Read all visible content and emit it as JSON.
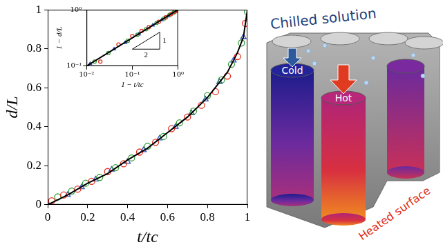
{
  "chart_data": [
    {
      "type": "scatter",
      "x_label": "t/tc",
      "y_label": "d/L",
      "xlim": [
        0,
        1
      ],
      "ylim": [
        0,
        1
      ],
      "xticks": [
        0,
        0.2,
        0.4,
        0.6,
        0.8,
        1
      ],
      "yticks": [
        0,
        0.2,
        0.4,
        0.6,
        0.8,
        1
      ],
      "grid": false,
      "series": [
        {
          "color": "#000000",
          "line_style": "solid",
          "marker": "none",
          "x": [
            0,
            0.1,
            0.2,
            0.3,
            0.4,
            0.5,
            0.6,
            0.7,
            0.8,
            0.9,
            0.95,
            0.98,
            1
          ],
          "values": [
            0,
            0.05,
            0.11,
            0.16,
            0.23,
            0.29,
            0.37,
            0.45,
            0.55,
            0.68,
            0.78,
            0.86,
            1
          ]
        },
        {
          "color": "#e03020",
          "marker": "circle",
          "x": [
            0.02,
            0.08,
            0.15,
            0.22,
            0.3,
            0.38,
            0.46,
            0.54,
            0.62,
            0.7,
            0.77,
            0.84,
            0.9,
            0.95,
            0.99
          ],
          "values": [
            0.02,
            0.05,
            0.08,
            0.12,
            0.17,
            0.21,
            0.27,
            0.32,
            0.39,
            0.45,
            0.51,
            0.58,
            0.66,
            0.76,
            0.93
          ]
        },
        {
          "color": "#3aa040",
          "marker": "circle",
          "x": [
            0.05,
            0.12,
            0.19,
            0.26,
            0.34,
            0.42,
            0.5,
            0.58,
            0.66,
            0.73,
            0.8,
            0.87,
            0.92,
            0.97,
            1
          ],
          "values": [
            0.04,
            0.07,
            0.11,
            0.14,
            0.19,
            0.24,
            0.3,
            0.35,
            0.42,
            0.48,
            0.56,
            0.64,
            0.72,
            0.83,
            0.99
          ]
        },
        {
          "color": "#3050c0",
          "marker": "triangle",
          "x": [
            0,
            0.1,
            0.17,
            0.24,
            0.32,
            0.4,
            0.48,
            0.56,
            0.64,
            0.72,
            0.79,
            0.86,
            0.93,
            0.98
          ],
          "values": [
            0,
            0.05,
            0.09,
            0.13,
            0.18,
            0.22,
            0.28,
            0.34,
            0.4,
            0.47,
            0.54,
            0.63,
            0.74,
            0.86
          ]
        }
      ]
    },
    {
      "type": "scatter",
      "log": true,
      "x_label": "1 − t/tc",
      "y_label": "1 − d/L",
      "xlim": [
        0.01,
        1
      ],
      "ylim": [
        0.1,
        1
      ],
      "xticks": [
        {
          "value": 0.01,
          "label": "10⁻²"
        },
        {
          "value": 0.1,
          "label": "10⁻¹"
        },
        {
          "value": 1,
          "label": "10⁰"
        }
      ],
      "yticks": [
        {
          "value": 0.1,
          "label": "10⁻¹"
        },
        {
          "value": 1,
          "label": "10⁰"
        }
      ],
      "grid": false,
      "annotations": [
        "1",
        "2"
      ],
      "series": [
        {
          "color": "#000000",
          "line_style": "solid",
          "marker": "none",
          "x": [
            0.01,
            1
          ],
          "values": [
            0.1,
            1
          ]
        },
        {
          "color": "#e03020",
          "marker": "circle",
          "x": [
            0.98,
            0.85,
            0.7,
            0.54,
            0.38,
            0.23,
            0.16,
            0.1,
            0.05,
            0.02
          ],
          "values": [
            0.98,
            0.92,
            0.83,
            0.73,
            0.61,
            0.49,
            0.42,
            0.34,
            0.24,
            0.12
          ]
        },
        {
          "color": "#3aa040",
          "marker": "circle",
          "x": [
            0.95,
            0.8,
            0.66,
            0.5,
            0.34,
            0.2,
            0.13,
            0.08,
            0.03,
            0.015
          ],
          "values": [
            0.96,
            0.89,
            0.81,
            0.7,
            0.58,
            0.45,
            0.36,
            0.28,
            0.17,
            0.12
          ]
        },
        {
          "color": "#3050c0",
          "marker": "triangle",
          "x": [
            1,
            0.9,
            0.76,
            0.6,
            0.44,
            0.28,
            0.14,
            0.07,
            0.04,
            0.012
          ],
          "values": [
            0.99,
            0.95,
            0.87,
            0.77,
            0.66,
            0.53,
            0.37,
            0.26,
            0.2,
            0.11
          ]
        }
      ]
    }
  ],
  "diagram": {
    "labels": {
      "solution": "Chilled solution",
      "cold": "Cold",
      "hot": "Hot",
      "surface": "Heated surface"
    }
  }
}
